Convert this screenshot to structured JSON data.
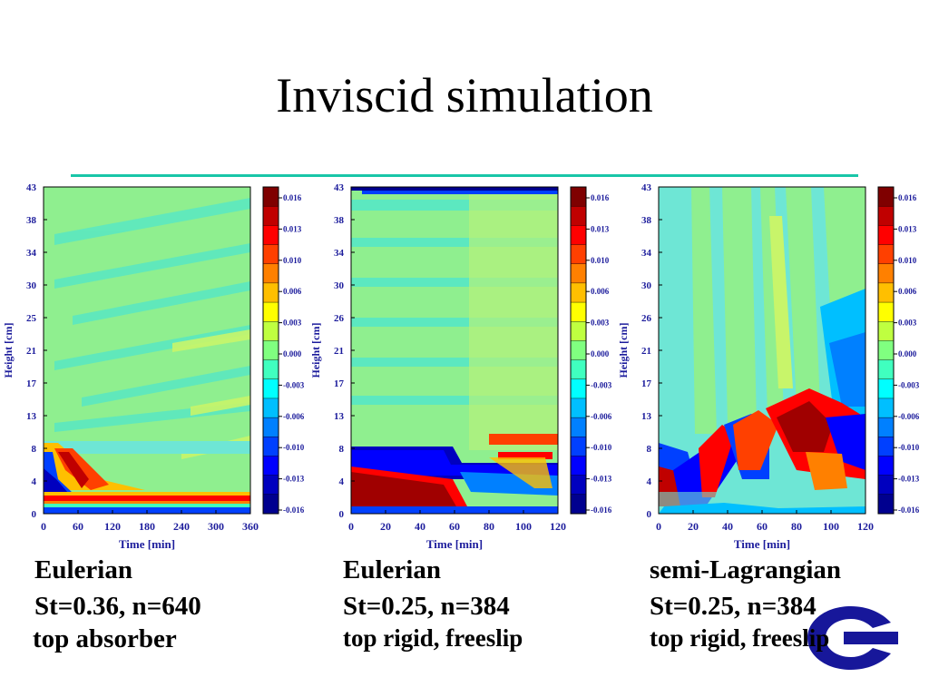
{
  "slide": {
    "title": "Inviscid simulation",
    "rule_color": "#19c6a8"
  },
  "colorbar": {
    "labels": [
      "0.016",
      "0.013",
      "0.010",
      "0.006",
      "0.003",
      "0.000",
      "-0.003",
      "-0.006",
      "-0.010",
      "-0.013",
      "-0.016"
    ],
    "colors": [
      "#7f0000",
      "#c00000",
      "#ff0000",
      "#ff4000",
      "#ff8000",
      "#ffbf00",
      "#ffff00",
      "#bfff40",
      "#80ff80",
      "#40ffbf",
      "#00ffff",
      "#00bfff",
      "#0080ff",
      "#0040ff",
      "#0000ff",
      "#0000bf",
      "#00008f"
    ]
  },
  "panels": [
    {
      "caption": {
        "line1": "Eulerian",
        "line2": "St=0.36, n=640",
        "line3": "top absorber"
      },
      "x_label": "Time [min]",
      "y_label": "Height [cm]",
      "x_ticks": [
        "0",
        "60",
        "120",
        "180",
        "240",
        "300",
        "360"
      ],
      "y_ticks": [
        "0",
        "4",
        "8",
        "13",
        "17",
        "21",
        "25",
        "30",
        "34",
        "38",
        "43"
      ]
    },
    {
      "caption": {
        "line1": "Eulerian",
        "line2": "St=0.25, n=384",
        "line3": "top rigid, freeslip"
      },
      "x_label": "Time [min]",
      "y_label": "Height [cm]",
      "x_ticks": [
        "0",
        "20",
        "40",
        "60",
        "80",
        "100",
        "120"
      ],
      "y_ticks": [
        "0",
        "4",
        "8",
        "13",
        "17",
        "21",
        "26",
        "30",
        "34",
        "38",
        "43"
      ]
    },
    {
      "caption": {
        "line1": "semi-Lagrangian",
        "line2": "St=0.25, n=384",
        "line3": "top rigid, freeslip"
      },
      "x_label": "Time [min]",
      "y_label": "Height [cm]",
      "x_ticks": [
        "0",
        "20",
        "40",
        "60",
        "80",
        "100",
        "120"
      ],
      "y_ticks": [
        "0",
        "4",
        "8",
        "13",
        "17",
        "21",
        "26",
        "30",
        "34",
        "38",
        "43"
      ]
    }
  ],
  "chart_data": [
    {
      "type": "heatmap",
      "xlabel": "Time [min]",
      "ylabel": "Height [cm]",
      "xlim": [
        0,
        360
      ],
      "ylim": [
        0,
        43
      ],
      "colorbar_range": [
        -0.016,
        0.016
      ]
    },
    {
      "type": "heatmap",
      "xlabel": "Time [min]",
      "ylabel": "Height [cm]",
      "xlim": [
        0,
        120
      ],
      "ylim": [
        0,
        43
      ],
      "colorbar_range": [
        -0.016,
        0.016
      ]
    },
    {
      "type": "heatmap",
      "xlabel": "Time [min]",
      "ylabel": "Height [cm]",
      "xlim": [
        0,
        120
      ],
      "ylim": [
        0,
        43
      ],
      "colorbar_range": [
        -0.016,
        0.016
      ]
    }
  ]
}
